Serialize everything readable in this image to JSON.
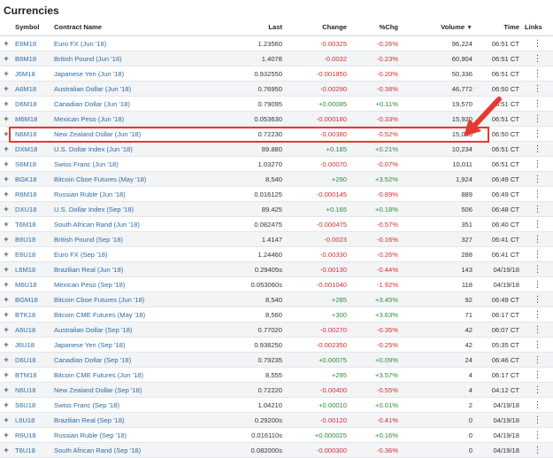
{
  "page": {
    "title": "Currencies"
  },
  "columns": {
    "symbol": "Symbol",
    "name": "Contract Name",
    "last": "Last",
    "change": "Change",
    "pchg": "%Chg",
    "volume": "Volume",
    "time": "Time",
    "links": "Links"
  },
  "icons": {
    "expand": "plus-icon",
    "links": "vertical-dots-icon",
    "sort": "sort-down-icon"
  },
  "colors": {
    "negative": "#d32f2f",
    "positive": "#2e8b3a",
    "highlight": "#e53935"
  },
  "rows": [
    {
      "symbol": "E6M18",
      "name": "Euro FX (Jun '18)",
      "last": "1.23560",
      "change": "-0.00325",
      "pchg": "-0.26%",
      "volume": "96,224",
      "time": "06:51 CT",
      "dir": "neg"
    },
    {
      "symbol": "B6M18",
      "name": "British Pound (Jun '18)",
      "last": "1.4078",
      "change": "-0.0032",
      "pchg": "-0.23%",
      "volume": "60,904",
      "time": "06:51 CT",
      "dir": "neg"
    },
    {
      "symbol": "J6M18",
      "name": "Japanese Yen (Jun '18)",
      "last": "0.932550",
      "change": "-0.001850",
      "pchg": "-0.20%",
      "volume": "50,336",
      "time": "06:51 CT",
      "dir": "neg"
    },
    {
      "symbol": "A6M18",
      "name": "Australian Dollar (Jun '18)",
      "last": "0.76950",
      "change": "-0.00290",
      "pchg": "-0.38%",
      "volume": "46,772",
      "time": "06:50 CT",
      "dir": "neg"
    },
    {
      "symbol": "D6M18",
      "name": "Canadian Dollar (Jun '18)",
      "last": "0.79095",
      "change": "+0.00085",
      "pchg": "+0.11%",
      "volume": "19,570",
      "time": "06:51 CT",
      "dir": "pos"
    },
    {
      "symbol": "M6M18",
      "name": "Mexican Peso (Jun '18)",
      "last": "0.053630",
      "change": "-0.000180",
      "pchg": "-0.33%",
      "volume": "15,920",
      "time": "06:51 CT",
      "dir": "neg"
    },
    {
      "symbol": "N6M18",
      "name": "New Zealand Dollar (Jun '18)",
      "last": "0.72230",
      "change": "-0.00380",
      "pchg": "-0.52%",
      "volume": "15,066",
      "time": "06:50 CT",
      "dir": "neg"
    },
    {
      "symbol": "DXM18",
      "name": "U.S. Dollar Index (Jun '18)",
      "last": "89.880",
      "change": "+0.185",
      "pchg": "+0.21%",
      "volume": "10,234",
      "time": "06:51 CT",
      "dir": "pos"
    },
    {
      "symbol": "S6M18",
      "name": "Swiss Franc (Jun '18)",
      "last": "1.03270",
      "change": "-0.00070",
      "pchg": "-0.07%",
      "volume": "10,011",
      "time": "06:51 CT",
      "dir": "neg"
    },
    {
      "symbol": "BGK18",
      "name": "Bitcoin Cboe Futures (May '18)",
      "last": "8,540",
      "change": "+290",
      "pchg": "+3.52%",
      "volume": "1,924",
      "time": "06:49 CT",
      "dir": "pos"
    },
    {
      "symbol": "R6M18",
      "name": "Russian Ruble (Jun '18)",
      "last": "0.016125",
      "change": "-0.000145",
      "pchg": "-0.89%",
      "volume": "889",
      "time": "06:49 CT",
      "dir": "neg"
    },
    {
      "symbol": "DXU18",
      "name": "U.S. Dollar Index (Sep '18)",
      "last": "89.425",
      "change": "+0.165",
      "pchg": "+0.18%",
      "volume": "506",
      "time": "06:48 CT",
      "dir": "pos"
    },
    {
      "symbol": "T6M18",
      "name": "South African Rand (Jun '18)",
      "last": "0.082475",
      "change": "-0.000475",
      "pchg": "-0.57%",
      "volume": "351",
      "time": "06:40 CT",
      "dir": "neg"
    },
    {
      "symbol": "B6U18",
      "name": "British Pound (Sep '18)",
      "last": "1.4147",
      "change": "-0.0023",
      "pchg": "-0.16%",
      "volume": "327",
      "time": "06:41 CT",
      "dir": "neg"
    },
    {
      "symbol": "E6U18",
      "name": "Euro FX (Sep '18)",
      "last": "1.24460",
      "change": "-0.00330",
      "pchg": "-0.26%",
      "volume": "288",
      "time": "06:41 CT",
      "dir": "neg"
    },
    {
      "symbol": "L6M18",
      "name": "Brazilian Real (Jun '18)",
      "last": "0.29405s",
      "change": "-0.00130",
      "pchg": "-0.44%",
      "volume": "143",
      "time": "04/19/18",
      "dir": "neg"
    },
    {
      "symbol": "M6U18",
      "name": "Mexican Peso (Sep '18)",
      "last": "0.053060s",
      "change": "-0.001040",
      "pchg": "-1.92%",
      "volume": "118",
      "time": "04/19/18",
      "dir": "neg"
    },
    {
      "symbol": "BGM18",
      "name": "Bitcoin Cboe Futures (Jun '18)",
      "last": "8,540",
      "change": "+285",
      "pchg": "+3.45%",
      "volume": "92",
      "time": "06:49 CT",
      "dir": "pos"
    },
    {
      "symbol": "BTK18",
      "name": "Bitcoin CME Futures (May '18)",
      "last": "8,560",
      "change": "+300",
      "pchg": "+3.63%",
      "volume": "71",
      "time": "06:17 CT",
      "dir": "pos"
    },
    {
      "symbol": "A6U18",
      "name": "Australian Dollar (Sep '18)",
      "last": "0.77020",
      "change": "-0.00270",
      "pchg": "-0.35%",
      "volume": "42",
      "time": "06:07 CT",
      "dir": "neg"
    },
    {
      "symbol": "J6U18",
      "name": "Japanese Yen (Sep '18)",
      "last": "0.938250",
      "change": "-0.002350",
      "pchg": "-0.25%",
      "volume": "42",
      "time": "05:35 CT",
      "dir": "neg"
    },
    {
      "symbol": "D6U18",
      "name": "Canadian Dollar (Sep '18)",
      "last": "0.79235",
      "change": "+0.00075",
      "pchg": "+0.09%",
      "volume": "24",
      "time": "06:46 CT",
      "dir": "pos"
    },
    {
      "symbol": "BTM18",
      "name": "Bitcoin CME Futures (Jun '18)",
      "last": "8,555",
      "change": "+295",
      "pchg": "+3.57%",
      "volume": "4",
      "time": "06:17 CT",
      "dir": "pos"
    },
    {
      "symbol": "N6U18",
      "name": "New Zealand Dollar (Sep '18)",
      "last": "0.72220",
      "change": "-0.00400",
      "pchg": "-0.55%",
      "volume": "4",
      "time": "04:12 CT",
      "dir": "neg"
    },
    {
      "symbol": "S6U18",
      "name": "Swiss Franc (Sep '18)",
      "last": "1.04210",
      "change": "+0.00010",
      "pchg": "+0.01%",
      "volume": "2",
      "time": "04/19/18",
      "dir": "pos"
    },
    {
      "symbol": "L6U18",
      "name": "Brazilian Real (Sep '18)",
      "last": "0.29200s",
      "change": "-0.00120",
      "pchg": "-0.41%",
      "volume": "0",
      "time": "04/19/18",
      "dir": "neg"
    },
    {
      "symbol": "R6U18",
      "name": "Russian Ruble (Sep '18)",
      "last": "0.016110s",
      "change": "+0.000025",
      "pchg": "+0.16%",
      "volume": "0",
      "time": "04/19/18",
      "dir": "pos"
    },
    {
      "symbol": "T6U18",
      "name": "South African Rand (Sep '18)",
      "last": "0.082000s",
      "change": "-0.000300",
      "pchg": "-0.36%",
      "volume": "0",
      "time": "04/19/18",
      "dir": "neg"
    }
  ]
}
